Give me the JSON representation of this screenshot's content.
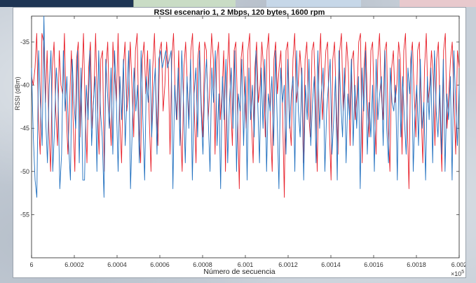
{
  "chart_data": {
    "type": "line",
    "title": "RSSI escenario 1, 2 Mbps, 120 bytes, 1600 rpm",
    "xlabel": "Número de secuencia",
    "ylabel": "RSSI (dBm)",
    "x_exponent_label": "×10",
    "x_exponent_power": "5",
    "xlim": [
      6.0,
      6.002
    ],
    "ylim": [
      -60,
      -32
    ],
    "xticks": [
      "6",
      "6.0002",
      "6.0004",
      "6.0006",
      "6.0008",
      "6.001",
      "6.0012",
      "6.0014",
      "6.0016",
      "6.0018",
      "6.002"
    ],
    "yticks": [
      "-35",
      "-40",
      "-45",
      "-50",
      "-55"
    ],
    "grid": false,
    "series": [
      {
        "color": "#e8202a",
        "values": [
          -39,
          -40,
          -38,
          -34,
          -44,
          -48,
          -34,
          -35,
          -42,
          -36,
          -45,
          -50,
          -38,
          -35,
          -43,
          -47,
          -36,
          -40,
          -41,
          -34,
          -43,
          -48,
          -42,
          -36,
          -44,
          -50,
          -37,
          -35,
          -46,
          -40,
          -34,
          -43,
          -49,
          -38,
          -35,
          -45,
          -41,
          -34,
          -42,
          -48,
          -37,
          -36,
          -50,
          -38,
          -35,
          -43,
          -47,
          -35,
          -39,
          -42,
          -34,
          -44,
          -49,
          -38,
          -35,
          -43,
          -41,
          -35,
          -40,
          -46,
          -36,
          -34,
          -45,
          -49,
          -37,
          -35,
          -41,
          -36,
          -44,
          -50,
          -38,
          -34,
          -42,
          -47,
          -36,
          -35,
          -43,
          -40,
          -35,
          -38,
          -48,
          -37,
          -34,
          -41,
          -44,
          -36,
          -45,
          -50,
          -38,
          -35,
          -40,
          -44,
          -36,
          -34,
          -43,
          -49,
          -37,
          -35,
          -42,
          -46,
          -35,
          -36,
          -44,
          -40,
          -34,
          -37,
          -48,
          -37,
          -35,
          -44,
          -41,
          -36,
          -50,
          -39,
          -34,
          -42,
          -47,
          -36,
          -35,
          -43,
          -52,
          -37,
          -35,
          -41,
          -45,
          -36,
          -34,
          -44,
          -49,
          -38,
          -35,
          -42,
          -40,
          -35,
          -38,
          -46,
          -36,
          -34,
          -45,
          -50,
          -37,
          -35,
          -41,
          -38,
          -36,
          -43,
          -53,
          -36,
          -35,
          -44,
          -47,
          -37,
          -34,
          -42,
          -40,
          -36,
          -39,
          -49,
          -37,
          -35,
          -43,
          -46,
          -36,
          -35,
          -41,
          -50,
          -38,
          -34,
          -44,
          -40,
          -36,
          -35,
          -45,
          -51,
          -37,
          -35,
          -42,
          -48,
          -36,
          -34,
          -43,
          -40,
          -35,
          -38,
          -47,
          -37,
          -36,
          -44,
          -41,
          -35,
          -34,
          -49,
          -38,
          -35,
          -42,
          -46,
          -36,
          -35,
          -43,
          -48,
          -37,
          -34,
          -41,
          -44,
          -36,
          -35,
          -45,
          -50,
          -38,
          -36,
          -42,
          -40,
          -35,
          -37,
          -48,
          -36,
          -34,
          -44,
          -52,
          -37,
          -35,
          -41,
          -46,
          -36,
          -35,
          -43,
          -49,
          -38,
          -34,
          -42,
          -40,
          -36,
          -39,
          -47,
          -37,
          -35,
          -44,
          -50,
          -36,
          -34,
          -45,
          -41,
          -37,
          -35,
          -42,
          -48,
          -36,
          -38
        ]
      },
      {
        "color": "#1f6fbf",
        "values": [
          -38,
          -46,
          -51,
          -53,
          -36,
          -42,
          -47,
          -32,
          -44,
          -49,
          -40,
          -36,
          -50,
          -45,
          -38,
          -41,
          -52,
          -48,
          -36,
          -43,
          -39,
          -47,
          -51,
          -37,
          -42,
          -45,
          -36,
          -49,
          -38,
          -51,
          -51,
          -40,
          -44,
          -36,
          -47,
          -42,
          -39,
          -50,
          -36,
          -43,
          -46,
          -53,
          -37,
          -41,
          -45,
          -38,
          -48,
          -36,
          -42,
          -50,
          -39,
          -44,
          -37,
          -47,
          -41,
          -36,
          -52,
          -45,
          -38,
          -43,
          -40,
          -49,
          -36,
          -44,
          -51,
          -39,
          -42,
          -37,
          -46,
          -41,
          -38,
          -48,
          -37,
          -36,
          -38,
          -37,
          -36,
          -38,
          -37,
          -36,
          -52,
          -40,
          -44,
          -38,
          -47,
          -36,
          -42,
          -49,
          -39,
          -45,
          -37,
          -51,
          -41,
          -38,
          -46,
          -36,
          -43,
          -48,
          -40,
          -37,
          -44,
          -50,
          -38,
          -42,
          -36,
          -47,
          -41,
          -52,
          -39,
          -44,
          -37,
          -49,
          -42,
          -38,
          -45,
          -36,
          -50,
          -41,
          -43,
          -37,
          -47,
          -39,
          -51,
          -38,
          -44,
          -40,
          -46,
          -36,
          -42,
          -49,
          -38,
          -45,
          -37,
          -50,
          -41,
          -43,
          -39,
          -47,
          -36,
          -44,
          -52,
          -38,
          -42,
          -40,
          -48,
          -37,
          -45,
          -41,
          -39,
          -50,
          -36,
          -43,
          -46,
          -38,
          -51,
          -40,
          -44,
          -37,
          -47,
          -42,
          -39,
          -49,
          -36,
          -45,
          -41,
          -38,
          -50,
          -43,
          -40,
          -37,
          -48,
          -44,
          -39,
          -51,
          -36,
          -42,
          -46,
          -38,
          -49,
          -41,
          -44,
          -37,
          -47,
          -40,
          -45,
          -39,
          -52,
          -38,
          -43,
          -36,
          -48,
          -42,
          -46,
          -40,
          -50,
          -37,
          -44,
          -41,
          -39,
          -47,
          -36,
          -45,
          -49,
          -38,
          -42,
          -43,
          -40,
          -51,
          -37,
          -46,
          -39,
          -44,
          -48,
          -38,
          -41,
          -36,
          -50,
          -43,
          -40,
          -47,
          -37,
          -45,
          -42,
          -51,
          -39,
          -44,
          -38,
          -49,
          -36,
          -43,
          -46,
          -40,
          -48,
          -37,
          -50,
          -41,
          -44,
          -39,
          -51,
          -36,
          -42,
          -47,
          -40
        ]
      }
    ]
  }
}
